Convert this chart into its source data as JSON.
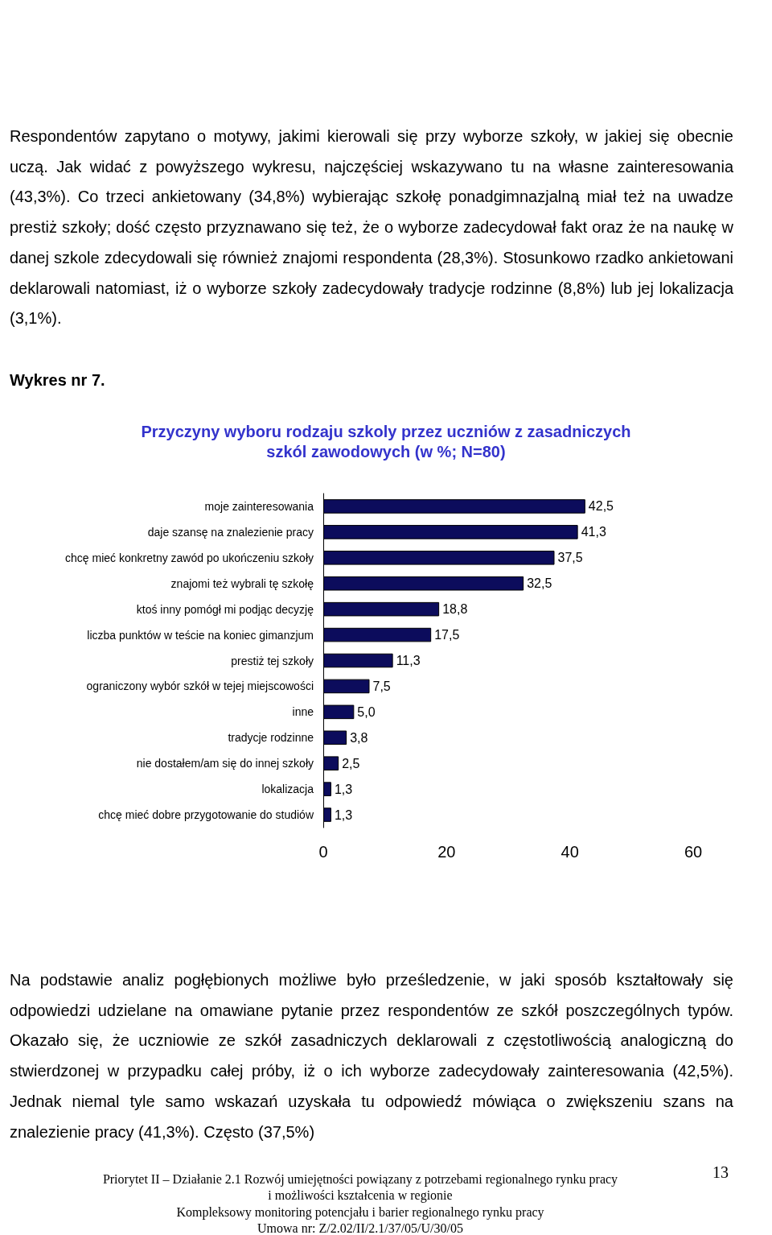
{
  "chart_data": {
    "type": "bar",
    "orientation": "horizontal",
    "title": "Przyczyny wyboru rodzaju szkoly przez uczniów z zasadniczych\nszkól zawodowych (w %; N=80)",
    "categories": [
      "moje zainteresowania",
      "daje szansę na znalezienie pracy",
      "chcę mieć konkretny zawód po ukończeniu szkoły",
      "znajomi też wybrali tę szkołę",
      "ktoś inny pomógł mi podjąc decyzję",
      "liczba punktów w teście na koniec gimanzjum",
      "prestiż tej szkoły",
      "ograniczony wybór szkół w tejej miejscowości",
      "inne",
      "tradycje rodzinne",
      "nie dostałem/am się do innej szkoły",
      "lokalizacja",
      "chcę mieć dobre przygotowanie do studiów"
    ],
    "values": [
      42.5,
      41.3,
      37.5,
      32.5,
      18.8,
      17.5,
      11.3,
      7.5,
      5.0,
      3.8,
      2.5,
      1.3,
      1.3
    ],
    "value_labels": [
      "42,5",
      "41,3",
      "37,5",
      "32,5",
      "18,8",
      "17,5",
      "11,3",
      "7,5",
      "5,0",
      "3,8",
      "2,5",
      "1,3",
      "1,3"
    ],
    "color": "#0c0c5c",
    "xlim": [
      0,
      60
    ],
    "xticks": [
      0,
      20,
      40,
      60
    ],
    "grid": false,
    "annotations": [
      "Respondentów zapytano o motywy, jakimi kierowali się przy wyborze szkoły, w jakiej się obecnie uczą. Jak widać z powyższego wykresu, najczęściej wskazywano tu na własne zainteresowania (43,3%). Co trzeci ankietowany (34,8%) wybierając szkołę ponadgimnazjalną miał też na uwadze prestiż szkoły; dość często przyznawano się też, że o wyborze zadecydował fakt oraz że na naukę w danej szkole zdecydowali się również znajomi respondenta (28,3%). Stosunkowo rzadko ankietowani deklarowali natomiast, iż o wyborze szkoły zadecydowały tradycje rodzinne (8,8%) lub jej lokalizacja (3,1%).",
      "Wykres nr 7.",
      "Na podstawie analiz pogłębionych możliwe było prześledzenie, w jaki sposób kształtowały się odpowiedzi udzielane na omawiane pytanie przez respondentów ze szkół poszczególnych typów. Okazało się, że uczniowie ze szkół zasadniczych deklarowali z częstotliwością analogiczną do stwierdzonej w przypadku całej próby, iż o ich wyborze zadecydowały zainteresowania (42,5%). Jednak niemal tyle samo wskazań uzyskała tu odpowiedź mówiąca o zwiększeniu szans na znalezienie pracy (41,3%). Często (37,5%)",
      "Priorytet II – Działanie 2.1 Rozwój umiejętności powiązany z potrzebami regionalnego rynku pracy",
      "i możliwości kształcenia  w regionie",
      "Kompleksowy monitoring potencjału i barier regionalnego rynku pracy",
      "Umowa nr: Z/2.02/II/2.1/37/05/U/30/05",
      "13"
    ]
  }
}
